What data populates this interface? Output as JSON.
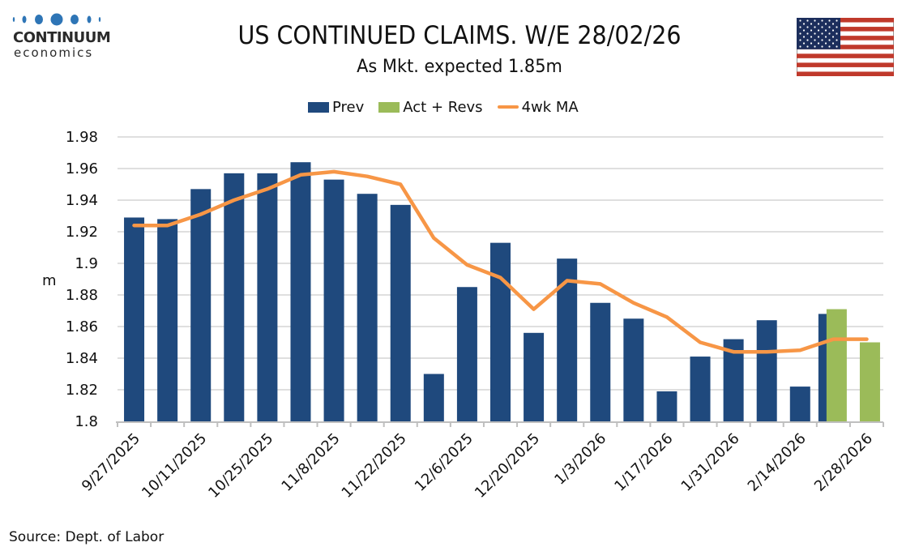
{
  "logo": {
    "name": "CONTINUUM",
    "sub": "economics"
  },
  "header": {
    "title": "US CONTINUED CLAIMS. W/E 28/02/26",
    "subtitle": "As Mkt. expected 1.85m"
  },
  "flag": {
    "icon": "us-flag-icon"
  },
  "colors": {
    "prev": "#1f497d",
    "act": "#9bbb59",
    "ma": "#f79646",
    "grid": "#bfbfbf",
    "logo_blue": "#2e75b6"
  },
  "source": "Source: Dept. of Labor",
  "chart_data": {
    "type": "bar",
    "title": "US CONTINUED CLAIMS. W/E 28/02/26",
    "subtitle": "As Mkt. expected 1.85m",
    "xlabel": "",
    "ylabel": "m",
    "ylim": [
      1.8,
      1.98
    ],
    "yticks": [
      "1.98",
      "1.96",
      "1.94",
      "1.92",
      "1.9",
      "1.88",
      "1.86",
      "1.84",
      "1.82",
      "1.8"
    ],
    "ytick_values": [
      1.98,
      1.96,
      1.94,
      1.92,
      1.9,
      1.88,
      1.86,
      1.84,
      1.82,
      1.8
    ],
    "grid": true,
    "legend_position": "top",
    "categories": [
      "9/27/2025",
      "10/4/2025",
      "10/11/2025",
      "10/18/2025",
      "10/25/2025",
      "11/1/2025",
      "11/8/2025",
      "11/15/2025",
      "11/22/2025",
      "11/29/2025",
      "12/6/2025",
      "12/13/2025",
      "12/20/2025",
      "12/27/2025",
      "1/3/2026",
      "1/10/2026",
      "1/17/2026",
      "1/24/2026",
      "1/31/2026",
      "2/7/2026",
      "2/14/2026",
      "2/21/2026",
      "2/28/2026"
    ],
    "xtick_labels": [
      "9/27/2025",
      "10/11/2025",
      "10/25/2025",
      "11/8/2025",
      "11/22/2025",
      "12/6/2025",
      "12/20/2025",
      "1/3/2026",
      "1/17/2026",
      "1/31/2026",
      "2/14/2026",
      "2/28/2026"
    ],
    "legend": [
      "Prev",
      "Act + Revs",
      "4wk MA"
    ],
    "series": [
      {
        "name": "Prev",
        "type": "bar",
        "values": [
          1.929,
          1.928,
          1.947,
          1.957,
          1.957,
          1.964,
          1.953,
          1.944,
          1.937,
          1.83,
          1.885,
          1.913,
          1.856,
          1.903,
          1.875,
          1.865,
          1.819,
          1.841,
          1.852,
          1.864,
          1.822,
          1.868,
          null
        ]
      },
      {
        "name": "Act + Revs",
        "type": "bar",
        "values": [
          null,
          null,
          null,
          null,
          null,
          null,
          null,
          null,
          null,
          null,
          null,
          null,
          null,
          null,
          null,
          null,
          null,
          null,
          null,
          null,
          null,
          1.871,
          1.85
        ]
      },
      {
        "name": "4wk MA",
        "type": "line",
        "values": [
          1.924,
          1.924,
          1.931,
          1.94,
          1.947,
          1.956,
          1.958,
          1.955,
          1.95,
          1.916,
          1.899,
          1.891,
          1.871,
          1.889,
          1.887,
          1.875,
          1.866,
          1.85,
          1.844,
          1.844,
          1.845,
          1.852,
          1.852
        ]
      }
    ]
  }
}
